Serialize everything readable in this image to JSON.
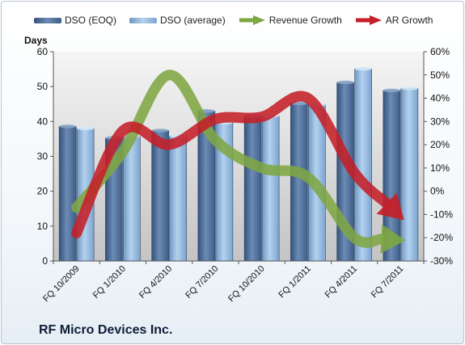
{
  "chart_data": {
    "type": "bar",
    "title": "RF Micro Devices Inc.",
    "ylabel": "Days",
    "categories": [
      "FQ 10/2009",
      "FQ 1/2010",
      "FQ 4/2010",
      "FQ 7/2010",
      "FQ 10/2010",
      "FQ 1/2011",
      "FQ 4/2011",
      "FQ 7/2011"
    ],
    "ylim": [
      0,
      60
    ],
    "yticks": [
      0,
      10,
      20,
      30,
      40,
      50,
      60
    ],
    "y2lim": [
      -30,
      60
    ],
    "y2ticks": [
      "-30%",
      "-20%",
      "-10%",
      "0%",
      "10%",
      "20%",
      "30%",
      "40%",
      "50%",
      "60%"
    ],
    "grid": false,
    "legend_position": "top",
    "series": [
      {
        "name": "DSO (EOQ)",
        "kind": "bar",
        "color": "#4e6d96",
        "values": [
          38.6,
          35.3,
          37.4,
          43.0,
          41.5,
          45.2,
          51.2,
          48.9
        ]
      },
      {
        "name": "DSO (average)",
        "kind": "bar",
        "color": "#8fb4d8",
        "values": [
          38.0,
          35.8,
          35.8,
          39.7,
          41.6,
          44.8,
          55.1,
          49.5
        ]
      },
      {
        "name": "Revenue Growth",
        "kind": "arrow",
        "axis": "y2",
        "color": "#7ea643",
        "values": [
          -7,
          17,
          50,
          22,
          10,
          6,
          -20,
          -21
        ]
      },
      {
        "name": "AR Growth",
        "kind": "arrow",
        "axis": "y2",
        "color": "#c51f28",
        "values": [
          -18,
          26,
          20,
          31,
          32,
          40,
          8,
          -11
        ]
      }
    ]
  }
}
